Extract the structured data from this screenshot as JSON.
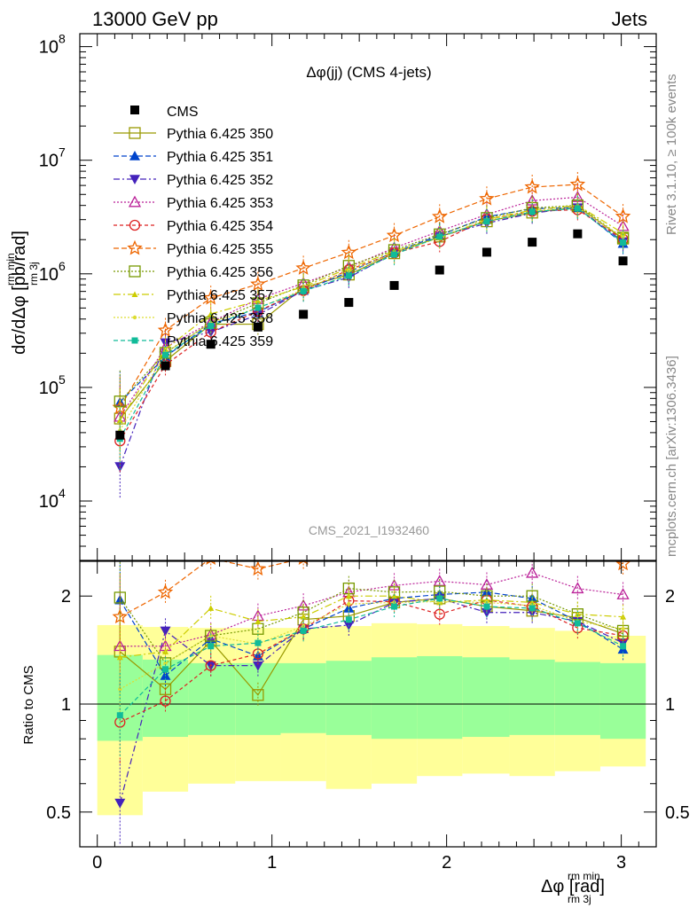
{
  "header": {
    "left": "13000 GeV pp",
    "right": "Jets"
  },
  "side_labels": {
    "rivet": "Rivet 3.1.10, ≥ 100k events",
    "mcplots": "mcplots.cern.ch [arXiv:1306.3436]"
  },
  "chart_data": {
    "type": "line",
    "title": "Δφ(jj) (CMS 4-jets)",
    "watermark": "CMS_2021_I1932460",
    "ylabel": "dσ/dΔφ [pb/rad]",
    "ylabel_sup": "rm min",
    "ylabel_sub": "rm 3j",
    "xlabel": "Δφ [rad]",
    "xlabel_sup": "rm min",
    "xlabel_sub": "rm 3j",
    "ratio_ylabel": "Ratio to CMS",
    "y_scale": "log",
    "ylim": [
      3000,
      130000000
    ],
    "xlim": [
      -0.1,
      3.2
    ],
    "ratio_ylim": [
      0.4,
      2.5
    ],
    "x_ticks": [
      "0",
      "1",
      "2",
      "3"
    ],
    "y_ticks": [
      "10",
      "10",
      "10",
      "10",
      "10"
    ],
    "y_tick_exp": [
      "4",
      "5",
      "6",
      "7",
      "8"
    ],
    "ratio_ticks": [
      "0.5",
      "1",
      "2"
    ],
    "x": [
      0.13,
      0.39,
      0.65,
      0.92,
      1.18,
      1.44,
      1.7,
      1.96,
      2.23,
      2.49,
      2.75,
      3.01
    ],
    "band_edges": [
      0,
      0.26,
      0.52,
      0.79,
      1.05,
      1.31,
      1.57,
      1.83,
      2.09,
      2.36,
      2.62,
      2.88,
      3.14
    ],
    "band_inner_lo": [
      0.79,
      0.81,
      0.82,
      0.82,
      0.83,
      0.82,
      0.8,
      0.8,
      0.81,
      0.82,
      0.82,
      0.8
    ],
    "band_inner_hi": [
      1.37,
      1.33,
      1.3,
      1.3,
      1.3,
      1.32,
      1.35,
      1.36,
      1.35,
      1.33,
      1.31,
      1.3
    ],
    "band_outer_lo": [
      0.49,
      0.57,
      0.6,
      0.61,
      0.61,
      0.58,
      0.6,
      0.63,
      0.64,
      0.63,
      0.65,
      0.67
    ],
    "band_outer_hi": [
      1.66,
      1.64,
      1.63,
      1.63,
      1.63,
      1.65,
      1.68,
      1.67,
      1.65,
      1.63,
      1.6,
      1.55
    ],
    "cms": [
      38000,
      155000,
      240000,
      340000,
      440000,
      560000,
      790000,
      1080000,
      1550000,
      1900000,
      2250000,
      1300000
    ],
    "series": [
      {
        "name": "Pythia 6.425 350",
        "color": "#999900",
        "marker": "sq-open",
        "dash": "",
        "ratio": [
          1.4,
          1.1,
          1.5,
          1.06,
          1.72,
          1.76,
          1.92,
          1.97,
          1.87,
          1.82,
          1.74,
          1.57
        ]
      },
      {
        "name": "Pythia 6.425 351",
        "color": "#0044cc",
        "marker": "tri-up",
        "dash": "6,3",
        "ratio": [
          1.95,
          1.2,
          1.52,
          1.36,
          1.62,
          1.85,
          1.97,
          2.02,
          2.05,
          1.97,
          1.7,
          1.42
        ]
      },
      {
        "name": "Pythia 6.425 352",
        "color": "#4422bb",
        "marker": "tri-down",
        "dash": "7,3,2,3",
        "ratio": [
          0.53,
          1.6,
          1.28,
          1.28,
          1.62,
          1.66,
          1.92,
          1.97,
          1.8,
          1.8,
          1.7,
          1.48
        ]
      },
      {
        "name": "Pythia 6.425 353",
        "color": "#bb2299",
        "marker": "tri-open",
        "dash": "2,2",
        "ratio": [
          1.45,
          1.45,
          1.56,
          1.76,
          1.88,
          2.05,
          2.14,
          2.2,
          2.15,
          2.32,
          2.1,
          2.02
        ]
      },
      {
        "name": "Pythia 6.425 354",
        "color": "#dd2222",
        "marker": "circ-open",
        "dash": "4,3",
        "ratio": [
          0.89,
          1.02,
          1.28,
          1.38,
          1.62,
          1.94,
          1.93,
          1.78,
          1.95,
          1.87,
          1.63,
          1.55
        ]
      },
      {
        "name": "Pythia 6.425 355",
        "color": "#ee6600",
        "marker": "star-open",
        "dash": "6,3",
        "ratio": [
          1.75,
          2.05,
          2.55,
          2.38,
          2.55,
          2.75,
          2.75,
          2.95,
          2.95,
          3.05,
          2.72,
          2.46
        ]
      },
      {
        "name": "Pythia 6.425 356",
        "color": "#779900",
        "marker": "sq-open",
        "dash": "2,2",
        "ratio": [
          1.98,
          1.3,
          1.55,
          1.62,
          1.8,
          2.1,
          2.05,
          2.06,
          2.0,
          2.0,
          1.78,
          1.6
        ]
      },
      {
        "name": "Pythia 6.425 357",
        "color": "#cccc00",
        "marker": "tri-small",
        "dash": "8,3,2,3",
        "ratio": [
          1.35,
          1.4,
          1.85,
          1.7,
          1.75,
          2.0,
          2.0,
          1.92,
          1.95,
          1.92,
          1.78,
          1.75
        ]
      },
      {
        "name": "Pythia 6.425 358",
        "color": "#dddd33",
        "marker": "dot-small",
        "dash": "2,2",
        "ratio": [
          1.1,
          1.3,
          1.55,
          1.47,
          1.65,
          1.9,
          1.92,
          1.93,
          1.92,
          1.88,
          1.7,
          1.62
        ]
      },
      {
        "name": "Pythia 6.425 359",
        "color": "#11bb99",
        "marker": "sq-fill",
        "dash": "5,3",
        "ratio": [
          0.93,
          1.25,
          1.45,
          1.48,
          1.6,
          1.72,
          1.87,
          1.97,
          1.87,
          1.85,
          1.68,
          1.45
        ]
      }
    ]
  }
}
